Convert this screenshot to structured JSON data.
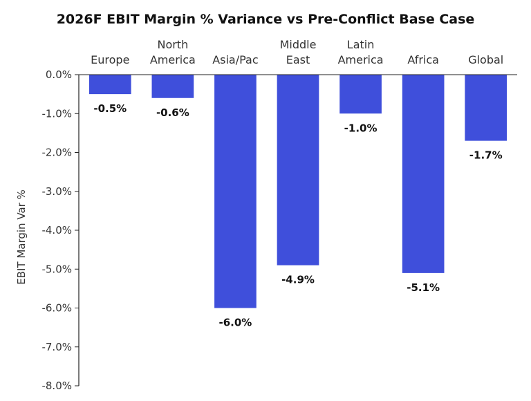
{
  "chart_data": {
    "type": "bar",
    "title": "2026F EBIT Margin % Variance vs Pre-Conflict Base Case",
    "ylabel": "EBIT Margin Var %",
    "xlabel": "",
    "categories": [
      [
        "Europe"
      ],
      [
        "North",
        "America"
      ],
      [
        "Asia/Pac"
      ],
      [
        "Middle",
        "East"
      ],
      [
        "Latin",
        "America"
      ],
      [
        "Africa"
      ],
      [
        "Global"
      ]
    ],
    "values": [
      -0.5,
      -0.6,
      -6.0,
      -4.9,
      -1.0,
      -5.1,
      -1.7
    ],
    "value_labels": [
      "-0.5%",
      "-0.6%",
      "-6.0%",
      "-4.9%",
      "-1.0%",
      "-5.1%",
      "-1.7%"
    ],
    "ylim": [
      -8.0,
      0.0
    ],
    "yticks": [
      0.0,
      -1.0,
      -2.0,
      -3.0,
      -4.0,
      -5.0,
      -6.0,
      -7.0,
      -8.0
    ],
    "ytick_labels": [
      "0.0%",
      "-1.0%",
      "-2.0%",
      "-3.0%",
      "-4.0%",
      "-5.0%",
      "-6.0%",
      "-7.0%",
      "-8.0%"
    ],
    "grid": false,
    "legend": "none",
    "category_axis_position": "top",
    "bar_color": "#3f4fdb",
    "axis_color": "#222222"
  }
}
